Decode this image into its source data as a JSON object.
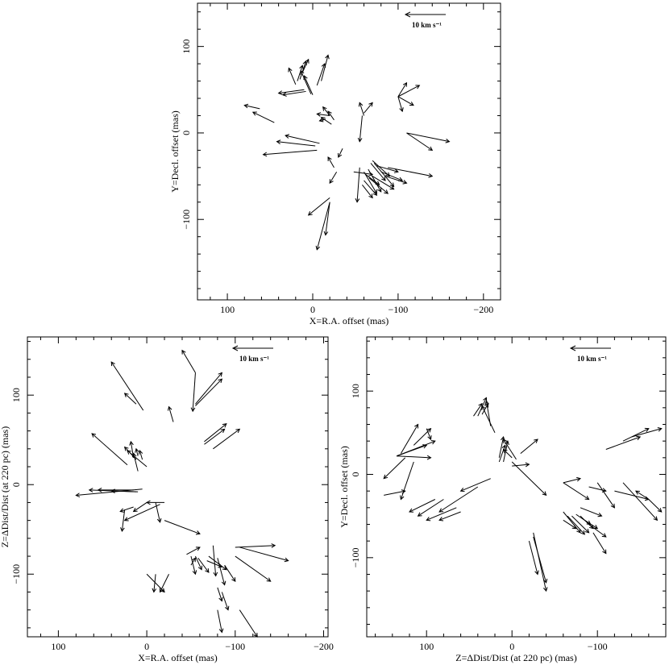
{
  "chart_data": [
    {
      "type": "scatter",
      "xlabel": "X=R.A. offset (mas)",
      "ylabel": "Y=Decl. offset (mas)",
      "xlim": [
        135,
        -220
      ],
      "ylim": [
        -193,
        150
      ],
      "xticks": [
        100,
        0,
        -100,
        -200
      ],
      "yticks": [
        100,
        0,
        -100
      ],
      "scale_label": "10 km s⁻¹",
      "vectors": [
        [
          62,
          28,
          80,
          32
        ],
        [
          45,
          12,
          70,
          24
        ],
        [
          10,
          50,
          40,
          46
        ],
        [
          8,
          48,
          35,
          44
        ],
        [
          20,
          56,
          28,
          75
        ],
        [
          18,
          60,
          12,
          78
        ],
        [
          15,
          62,
          8,
          83
        ],
        [
          12,
          70,
          5,
          85
        ],
        [
          2,
          45,
          14,
          72
        ],
        [
          0,
          44,
          10,
          66
        ],
        [
          -5,
          55,
          -14,
          80
        ],
        [
          -10,
          60,
          -18,
          90
        ],
        [
          -20,
          20,
          -12,
          30
        ],
        [
          -25,
          15,
          -18,
          25
        ],
        [
          -22,
          10,
          -10,
          18
        ],
        [
          -8,
          -12,
          32,
          -3
        ],
        [
          -3,
          -15,
          42,
          -10
        ],
        [
          -5,
          -20,
          58,
          -25
        ],
        [
          -15,
          16,
          -8,
          14
        ],
        [
          -20,
          20,
          -5,
          22
        ],
        [
          -35,
          -18,
          -30,
          -28
        ],
        [
          -25,
          -40,
          -18,
          -28
        ],
        [
          -28,
          -45,
          -20,
          -58
        ],
        [
          -60,
          23,
          -70,
          35
        ],
        [
          -60,
          20,
          -55,
          35
        ],
        [
          -58,
          20,
          -55,
          -10
        ],
        [
          -100,
          42,
          -110,
          58
        ],
        [
          -100,
          42,
          -125,
          55
        ],
        [
          -100,
          42,
          -118,
          32
        ],
        [
          -100,
          42,
          -105,
          25
        ],
        [
          -110,
          0,
          -160,
          -10
        ],
        [
          -110,
          0,
          -140,
          -20
        ],
        [
          -55,
          -40,
          -52,
          -80
        ],
        [
          -60,
          -45,
          -75,
          -70
        ],
        [
          -62,
          -48,
          -78,
          -60
        ],
        [
          -65,
          -42,
          -80,
          -68
        ],
        [
          -68,
          -35,
          -85,
          -55
        ],
        [
          -70,
          -32,
          -90,
          -50
        ],
        [
          -72,
          -35,
          -95,
          -62
        ],
        [
          -75,
          -38,
          -100,
          -45
        ],
        [
          -80,
          -45,
          -105,
          -55
        ],
        [
          -85,
          -50,
          -110,
          -58
        ],
        [
          -70,
          -50,
          -95,
          -65
        ],
        [
          -66,
          -52,
          -88,
          -70
        ],
        [
          -88,
          -40,
          -140,
          -50
        ],
        [
          -48,
          -45,
          -70,
          -48
        ],
        [
          -60,
          -55,
          -75,
          -72
        ],
        [
          -58,
          -60,
          -70,
          -75
        ],
        [
          -20,
          -80,
          -5,
          -135
        ],
        [
          -20,
          -75,
          5,
          -95
        ],
        [
          -20,
          -80,
          -15,
          -118
        ]
      ]
    },
    {
      "type": "scatter",
      "xlabel": "X=R.A. offset (mas)",
      "ylabel": "Z=ΔDist/Dist (at 220 pc) (mas)",
      "xlim": [
        135,
        -205
      ],
      "ylim": [
        -170,
        165
      ],
      "xticks": [
        100,
        0,
        -100,
        -200
      ],
      "yticks": [
        100,
        0,
        -100
      ],
      "scale_label": "10 km s⁻¹",
      "vectors": [
        [
          4,
          83,
          40,
          137
        ],
        [
          12,
          90,
          25,
          102
        ],
        [
          -30,
          70,
          -25,
          87
        ],
        [
          22,
          22,
          62,
          57
        ],
        [
          -55,
          125,
          -40,
          150
        ],
        [
          -55,
          125,
          -52,
          82
        ],
        [
          -55,
          90,
          -85,
          125
        ],
        [
          -55,
          88,
          -85,
          118
        ],
        [
          -65,
          48,
          -90,
          68
        ],
        [
          -65,
          45,
          -88,
          62
        ],
        [
          -75,
          40,
          -105,
          62
        ],
        [
          12,
          28,
          25,
          42
        ],
        [
          15,
          30,
          18,
          48
        ],
        [
          10,
          32,
          12,
          40
        ],
        [
          5,
          28,
          8,
          38
        ],
        [
          0,
          20,
          22,
          38
        ],
        [
          10,
          15,
          15,
          35
        ],
        [
          5,
          -5,
          80,
          -12
        ],
        [
          10,
          -8,
          65,
          -6
        ],
        [
          15,
          -6,
          55,
          -6
        ],
        [
          12,
          -8,
          40,
          -7
        ],
        [
          0,
          -20,
          15,
          -30
        ],
        [
          -15,
          -22,
          25,
          -40
        ],
        [
          15,
          -25,
          30,
          -30
        ],
        [
          25,
          -28,
          28,
          -52
        ],
        [
          -10,
          -20,
          -15,
          -42
        ],
        [
          -20,
          -40,
          -60,
          -55
        ],
        [
          -20,
          -20,
          0,
          -20
        ],
        [
          -45,
          -78,
          -60,
          -70
        ],
        [
          -50,
          -80,
          -55,
          -100
        ],
        [
          -55,
          -80,
          -62,
          -95
        ],
        [
          -58,
          -82,
          -70,
          -98
        ],
        [
          -50,
          -90,
          -55,
          -82
        ],
        [
          -68,
          -85,
          -85,
          -92
        ],
        [
          -70,
          -80,
          -90,
          -95
        ],
        [
          -75,
          -68,
          -78,
          -102
        ],
        [
          -80,
          -82,
          -88,
          -112
        ],
        [
          -88,
          -90,
          -100,
          -108
        ],
        [
          -100,
          -80,
          -140,
          -108
        ],
        [
          -100,
          -70,
          -145,
          -68
        ],
        [
          -105,
          -70,
          -160,
          -85
        ],
        [
          -80,
          -115,
          -85,
          -130
        ],
        [
          -85,
          -120,
          -92,
          -140
        ],
        [
          -80,
          -140,
          -85,
          -165
        ],
        [
          -105,
          -140,
          -125,
          -170
        ],
        [
          -25,
          -100,
          -15,
          -120
        ],
        [
          -10,
          -100,
          -8,
          -120
        ],
        [
          0,
          -100,
          -20,
          -120
        ]
      ]
    },
    {
      "type": "scatter",
      "xlabel": "Z=ΔDist/Dist (at 220 pc) (mas)",
      "ylabel": "Y=Decl. offset (mas)",
      "xlim": [
        170,
        -180
      ],
      "ylim": [
        -195,
        165
      ],
      "xticks": [
        100,
        0,
        -100
      ],
      "yticks": [
        100,
        0,
        -100
      ],
      "scale_label": "10 km s⁻¹",
      "vectors": [
        [
          135,
          22,
          100,
          35
        ],
        [
          135,
          22,
          90,
          40
        ],
        [
          135,
          22,
          95,
          20
        ],
        [
          130,
          25,
          110,
          60
        ],
        [
          125,
          20,
          150,
          -5
        ],
        [
          115,
          15,
          130,
          -30
        ],
        [
          100,
          55,
          95,
          42
        ],
        [
          115,
          35,
          95,
          55
        ],
        [
          150,
          -25,
          125,
          -20
        ],
        [
          90,
          -30,
          120,
          -45
        ],
        [
          80,
          -30,
          110,
          -50
        ],
        [
          65,
          -40,
          100,
          -55
        ],
        [
          60,
          -45,
          85,
          -55
        ],
        [
          40,
          -15,
          85,
          -45
        ],
        [
          25,
          -5,
          60,
          -20
        ],
        [
          45,
          70,
          35,
          85
        ],
        [
          40,
          70,
          30,
          92
        ],
        [
          35,
          72,
          28,
          85
        ],
        [
          25,
          58,
          30,
          88
        ],
        [
          20,
          50,
          35,
          82
        ],
        [
          15,
          15,
          8,
          35
        ],
        [
          10,
          15,
          5,
          40
        ],
        [
          15,
          20,
          10,
          45
        ],
        [
          0,
          20,
          10,
          30
        ],
        [
          -10,
          25,
          -30,
          42
        ],
        [
          -5,
          18,
          10,
          42
        ],
        [
          0,
          10,
          -20,
          12
        ],
        [
          0,
          15,
          -40,
          -25
        ],
        [
          -60,
          -10,
          -80,
          -5
        ],
        [
          -60,
          -10,
          -90,
          -30
        ],
        [
          -80,
          -40,
          -105,
          -50
        ],
        [
          -90,
          -15,
          -110,
          -20
        ],
        [
          -100,
          -10,
          -120,
          -40
        ],
        [
          -110,
          30,
          -150,
          45
        ],
        [
          -130,
          40,
          -160,
          55
        ],
        [
          -140,
          45,
          -175,
          55
        ],
        [
          -160,
          -30,
          -145,
          -20
        ],
        [
          -160,
          -30,
          -175,
          -45
        ],
        [
          -60,
          -45,
          -80,
          -70
        ],
        [
          -65,
          -50,
          -85,
          -72
        ],
        [
          -70,
          -50,
          -90,
          -70
        ],
        [
          -75,
          -48,
          -92,
          -60
        ],
        [
          -80,
          -50,
          -95,
          -65
        ],
        [
          -85,
          -55,
          -100,
          -65
        ],
        [
          -90,
          -60,
          -110,
          -75
        ],
        [
          -95,
          -70,
          -110,
          -95
        ],
        [
          -60,
          -55,
          -75,
          -65
        ],
        [
          -25,
          -70,
          -40,
          -140
        ],
        [
          -25,
          -75,
          -40,
          -130
        ],
        [
          -20,
          -80,
          -30,
          -120
        ],
        [
          -130,
          -10,
          -170,
          -55
        ],
        [
          -120,
          -20,
          -160,
          -30
        ]
      ]
    }
  ]
}
